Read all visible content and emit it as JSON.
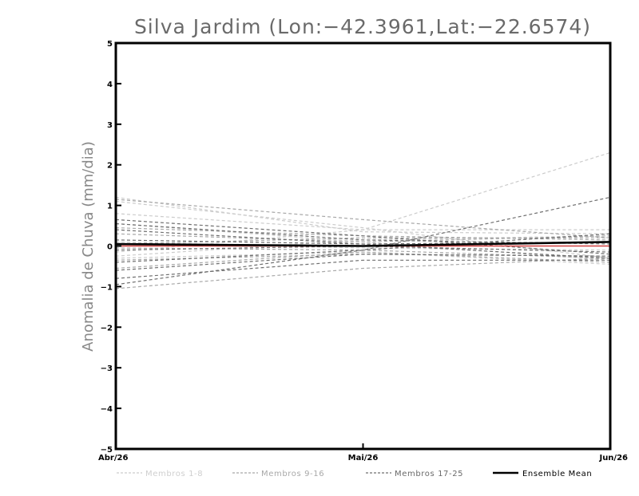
{
  "chart_data": {
    "type": "line",
    "title": "Silva Jardim (Lon:−42.3961,Lat:−22.6574)",
    "xlabel": "",
    "ylabel": "Anomalia de Chuva (mm/dia)",
    "categories": [
      "Abr/26",
      "Mai/26",
      "Jun/26"
    ],
    "ylim": [
      -5,
      5
    ],
    "yticks": [
      {
        "value": 5,
        "label": "5"
      },
      {
        "value": 4,
        "label": "4"
      },
      {
        "value": 3,
        "label": "3"
      },
      {
        "value": 2,
        "label": "2"
      },
      {
        "value": 1,
        "label": "1"
      },
      {
        "value": 0,
        "label": "0"
      },
      {
        "value": -1,
        "label": "−1"
      },
      {
        "value": -2,
        "label": "−2"
      },
      {
        "value": -3,
        "label": "−3"
      },
      {
        "value": -4,
        "label": "−4"
      },
      {
        "value": -5,
        "label": "−5"
      }
    ],
    "grid": false,
    "legend_position": "bottom",
    "colors": {
      "membros_1_8": "#cccccc",
      "membros_9_16": "#a8a8a8",
      "membros_17_25": "#6f6f6f",
      "ensemble_mean": "#000000",
      "zero_line": "#d04040"
    },
    "series": [
      {
        "name": "Membros 1-8",
        "group": "g1",
        "values": [
          1.2,
          0.35,
          0.3
        ]
      },
      {
        "name": "Membros 1-8",
        "group": "g1",
        "values": [
          1.1,
          0.45,
          -0.3
        ]
      },
      {
        "name": "Membros 1-8",
        "group": "g1",
        "values": [
          0.8,
          0.4,
          0.4
        ]
      },
      {
        "name": "Membros 1-8",
        "group": "g1",
        "values": [
          -0.15,
          0.4,
          2.3
        ]
      },
      {
        "name": "Membros 1-8",
        "group": "g1",
        "values": [
          -0.3,
          -0.15,
          -0.45
        ]
      },
      {
        "name": "Membros 1-8",
        "group": "g1",
        "values": [
          0.1,
          -0.05,
          -0.1
        ]
      },
      {
        "name": "Membros 1-8",
        "group": "g1",
        "values": [
          -0.25,
          0.15,
          0.25
        ]
      },
      {
        "name": "Membros 1-8",
        "group": "g1",
        "values": [
          0.55,
          0.1,
          -0.35
        ]
      },
      {
        "name": "Membros 9-16",
        "group": "g2",
        "values": [
          1.15,
          0.65,
          0.2
        ]
      },
      {
        "name": "Membros 9-16",
        "group": "g2",
        "values": [
          0.05,
          0.2,
          0.2
        ]
      },
      {
        "name": "Membros 9-16",
        "group": "g2",
        "values": [
          -0.35,
          -0.2,
          -0.25
        ]
      },
      {
        "name": "Membros 9-16",
        "group": "g2",
        "values": [
          -0.55,
          -0.15,
          -0.4
        ]
      },
      {
        "name": "Membros 9-16",
        "group": "g2",
        "values": [
          0.3,
          0.1,
          0.25
        ]
      },
      {
        "name": "Membros 9-16",
        "group": "g2",
        "values": [
          -0.05,
          -0.1,
          -0.3
        ]
      },
      {
        "name": "Membros 9-16",
        "group": "g2",
        "values": [
          -1.05,
          -0.55,
          -0.3
        ]
      },
      {
        "name": "Membros 9-16",
        "group": "g2",
        "values": [
          0.45,
          0.25,
          0.15
        ]
      },
      {
        "name": "Membros 17-25",
        "group": "g3",
        "values": [
          0.65,
          0.25,
          -0.2
        ]
      },
      {
        "name": "Membros 17-25",
        "group": "g3",
        "values": [
          0.4,
          0.05,
          -0.3
        ]
      },
      {
        "name": "Membros 17-25",
        "group": "g3",
        "values": [
          0.15,
          0.05,
          0.1
        ]
      },
      {
        "name": "Membros 17-25",
        "group": "g3",
        "values": [
          -0.95,
          -0.1,
          1.2
        ]
      },
      {
        "name": "Membros 17-25",
        "group": "g3",
        "values": [
          -0.8,
          -0.35,
          -0.35
        ]
      },
      {
        "name": "Membros 17-25",
        "group": "g3",
        "values": [
          -0.6,
          -0.2,
          -0.25
        ]
      },
      {
        "name": "Membros 17-25",
        "group": "g3",
        "values": [
          0.55,
          0.15,
          0.05
        ]
      },
      {
        "name": "Membros 17-25",
        "group": "g3",
        "values": [
          -0.4,
          -0.1,
          0.3
        ]
      },
      {
        "name": "Membros 17-25",
        "group": "g3",
        "values": [
          -0.1,
          0.0,
          -0.15
        ]
      },
      {
        "name": "Ensemble Mean",
        "group": "mean",
        "values": [
          0.05,
          0.0,
          0.1
        ]
      }
    ],
    "legend": [
      {
        "label": "Membros 1-8",
        "group": "g1",
        "style": "dashed",
        "color": "#cccccc",
        "text_color": "#cfcfcf"
      },
      {
        "label": "Membros 9-16",
        "group": "g2",
        "style": "dashed",
        "color": "#a8a8a8",
        "text_color": "#a8a8a8"
      },
      {
        "label": "Membros 17-25",
        "group": "g3",
        "style": "dashed",
        "color": "#6f6f6f",
        "text_color": "#6a6a6a"
      },
      {
        "label": "Ensemble Mean",
        "group": "mean",
        "style": "solid",
        "color": "#000000",
        "text_color": "#000000"
      }
    ]
  }
}
